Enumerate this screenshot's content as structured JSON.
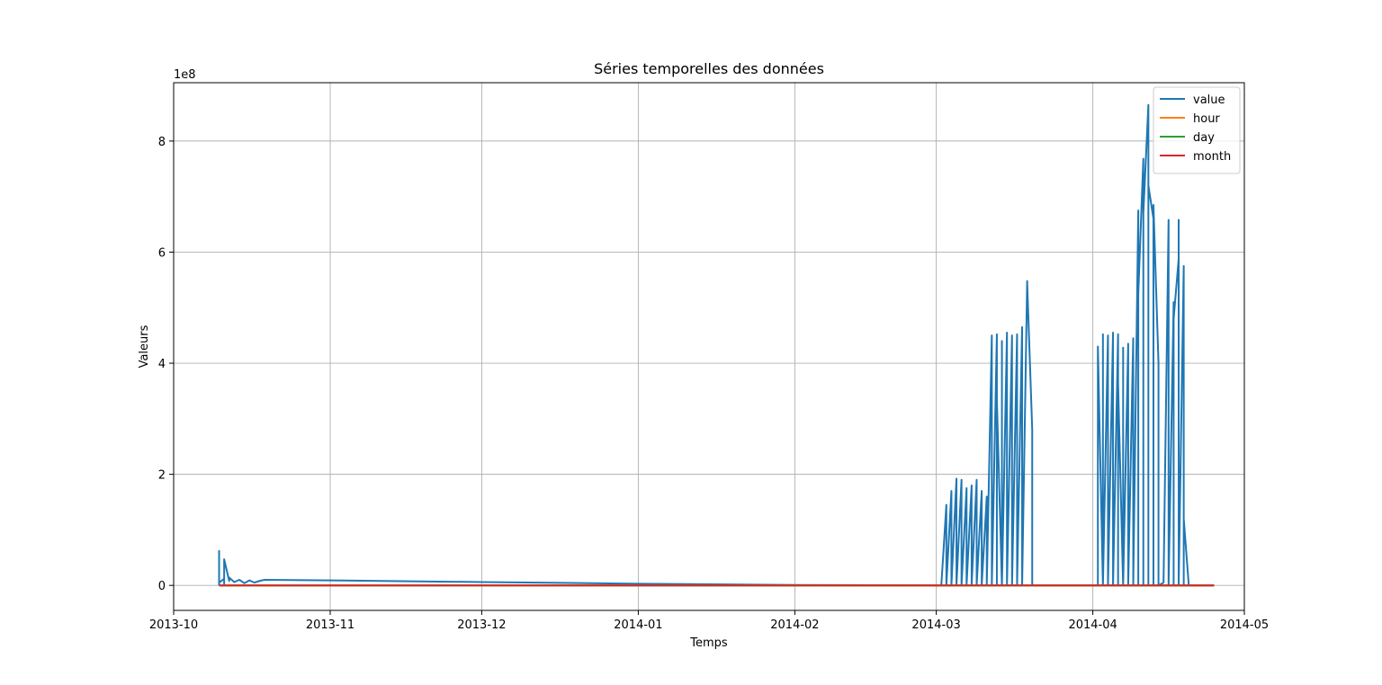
{
  "chart_data": {
    "type": "line",
    "title": "Séries temporelles des données",
    "xlabel": "Temps",
    "ylabel": "Valeurs",
    "y_offset_text": "1e8",
    "y_scale_factor": 100000000,
    "xlim": [
      "2013-10-01",
      "2014-05-01"
    ],
    "ylim": [
      -45000000,
      905000000
    ],
    "x_ticks": [
      "2013-10",
      "2013-11",
      "2013-12",
      "2014-01",
      "2014-02",
      "2014-03",
      "2014-04",
      "2014-05"
    ],
    "y_ticks": [
      0,
      200000000,
      400000000,
      600000000,
      800000000
    ],
    "y_tick_labels": [
      "0",
      "2",
      "4",
      "6",
      "8"
    ],
    "grid": true,
    "legend_position": "top-right",
    "colors": {
      "value": "#1f77b4",
      "hour": "#ff7f0e",
      "day": "#2ca02c",
      "month": "#d62728",
      "grid": "#b0b0b0",
      "axes": "#000000"
    },
    "series": [
      {
        "name": "value",
        "color": "#1f77b4",
        "points": [
          [
            "2013-10-10",
            0
          ],
          [
            "2013-10-10",
            62000000
          ],
          [
            "2013-10-10",
            5000000
          ],
          [
            "2013-10-11",
            12000000
          ],
          [
            "2013-10-11",
            3000000
          ],
          [
            "2013-10-11",
            47000000
          ],
          [
            "2013-10-12",
            8000000
          ],
          [
            "2013-10-12",
            14000000
          ],
          [
            "2013-10-13",
            6000000
          ],
          [
            "2013-10-14",
            10000000
          ],
          [
            "2013-10-15",
            4000000
          ],
          [
            "2013-10-16",
            9000000
          ],
          [
            "2013-10-17",
            5000000
          ],
          [
            "2013-10-18",
            8000000
          ],
          [
            "2013-10-19",
            10000000
          ],
          [
            "2013-11-01",
            9000000
          ],
          [
            "2013-12-01",
            6000000
          ],
          [
            "2014-01-01",
            3000000
          ],
          [
            "2014-02-01",
            800000
          ],
          [
            "2014-03-02",
            0
          ],
          [
            "2014-03-03",
            145000000
          ],
          [
            "2014-03-03",
            0
          ],
          [
            "2014-03-04",
            170000000
          ],
          [
            "2014-03-04",
            0
          ],
          [
            "2014-03-05",
            192000000
          ],
          [
            "2014-03-05",
            0
          ],
          [
            "2014-03-06",
            190000000
          ],
          [
            "2014-03-06",
            0
          ],
          [
            "2014-03-07",
            175000000
          ],
          [
            "2014-03-07",
            0
          ],
          [
            "2014-03-08",
            180000000
          ],
          [
            "2014-03-08",
            0
          ],
          [
            "2014-03-09",
            190000000
          ],
          [
            "2014-03-09",
            0
          ],
          [
            "2014-03-10",
            170000000
          ],
          [
            "2014-03-10",
            0
          ],
          [
            "2014-03-11",
            160000000
          ],
          [
            "2014-03-11",
            0
          ],
          [
            "2014-03-12",
            450000000
          ],
          [
            "2014-03-12",
            0
          ],
          [
            "2014-03-13",
            452000000
          ],
          [
            "2014-03-13",
            0
          ],
          [
            "2014-03-13",
            335000000
          ],
          [
            "2014-03-14",
            0
          ],
          [
            "2014-03-14",
            440000000
          ],
          [
            "2014-03-14",
            0
          ],
          [
            "2014-03-15",
            455000000
          ],
          [
            "2014-03-15",
            0
          ],
          [
            "2014-03-16",
            450000000
          ],
          [
            "2014-03-16",
            0
          ],
          [
            "2014-03-17",
            452000000
          ],
          [
            "2014-03-17",
            0
          ],
          [
            "2014-03-18",
            465000000
          ],
          [
            "2014-03-18",
            0
          ],
          [
            "2014-03-19",
            548000000
          ],
          [
            "2014-03-19",
            545000000
          ],
          [
            "2014-03-20",
            280000000
          ],
          [
            "2014-03-20",
            0
          ],
          [
            "2014-04-02",
            0
          ],
          [
            "2014-04-02",
            430000000
          ],
          [
            "2014-04-03",
            0
          ],
          [
            "2014-04-03",
            452000000
          ],
          [
            "2014-04-03",
            0
          ],
          [
            "2014-04-04",
            450000000
          ],
          [
            "2014-04-04",
            0
          ],
          [
            "2014-04-05",
            455000000
          ],
          [
            "2014-04-05",
            0
          ],
          [
            "2014-04-06",
            452000000
          ],
          [
            "2014-04-06",
            0
          ],
          [
            "2014-04-06",
            365000000
          ],
          [
            "2014-04-07",
            0
          ],
          [
            "2014-04-07",
            428000000
          ],
          [
            "2014-04-07",
            0
          ],
          [
            "2014-04-08",
            435000000
          ],
          [
            "2014-04-08",
            0
          ],
          [
            "2014-04-09",
            445000000
          ],
          [
            "2014-04-09",
            0
          ],
          [
            "2014-04-10",
            675000000
          ],
          [
            "2014-04-10",
            0
          ],
          [
            "2014-04-10",
            525000000
          ],
          [
            "2014-04-11",
            768000000
          ],
          [
            "2014-04-11",
            0
          ],
          [
            "2014-04-11",
            670000000
          ],
          [
            "2014-04-12",
            865000000
          ],
          [
            "2014-04-12",
            0
          ],
          [
            "2014-04-12",
            720000000
          ],
          [
            "2014-04-13",
            660000000
          ],
          [
            "2014-04-13",
            0
          ],
          [
            "2014-04-13",
            685000000
          ],
          [
            "2014-04-14",
            400000000
          ],
          [
            "2014-04-14",
            0
          ],
          [
            "2014-04-15",
            5000000
          ],
          [
            "2014-04-16",
            658000000
          ],
          [
            "2014-04-16",
            0
          ],
          [
            "2014-04-17",
            510000000
          ],
          [
            "2014-04-17",
            0
          ],
          [
            "2014-04-17",
            480000000
          ],
          [
            "2014-04-18",
            588000000
          ],
          [
            "2014-04-18",
            0
          ],
          [
            "2014-04-18",
            658000000
          ],
          [
            "2014-04-18",
            0
          ],
          [
            "2014-04-19",
            575000000
          ],
          [
            "2014-04-19",
            0
          ],
          [
            "2014-04-19",
            550000000
          ],
          [
            "2014-04-19",
            120000000
          ],
          [
            "2014-04-20",
            0
          ],
          [
            "2014-04-25",
            0
          ]
        ]
      },
      {
        "name": "hour",
        "color": "#ff7f0e",
        "points": [
          [
            "2013-10-10",
            0
          ],
          [
            "2014-04-25",
            0
          ]
        ]
      },
      {
        "name": "day",
        "color": "#2ca02c",
        "points": [
          [
            "2013-10-10",
            0
          ],
          [
            "2014-04-25",
            0
          ]
        ]
      },
      {
        "name": "month",
        "color": "#d62728",
        "points": [
          [
            "2013-10-10",
            0
          ],
          [
            "2014-04-25",
            0
          ]
        ]
      }
    ]
  }
}
